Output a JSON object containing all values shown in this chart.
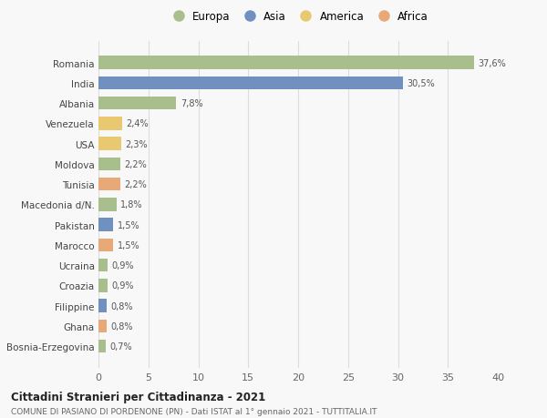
{
  "countries": [
    "Romania",
    "India",
    "Albania",
    "Venezuela",
    "USA",
    "Moldova",
    "Tunisia",
    "Macedonia d/N.",
    "Pakistan",
    "Marocco",
    "Ucraina",
    "Croazia",
    "Filippine",
    "Ghana",
    "Bosnia-Erzegovina"
  ],
  "values": [
    37.6,
    30.5,
    7.8,
    2.4,
    2.3,
    2.2,
    2.2,
    1.8,
    1.5,
    1.5,
    0.9,
    0.9,
    0.8,
    0.8,
    0.7
  ],
  "labels": [
    "37,6%",
    "30,5%",
    "7,8%",
    "2,4%",
    "2,3%",
    "2,2%",
    "2,2%",
    "1,8%",
    "1,5%",
    "1,5%",
    "0,9%",
    "0,9%",
    "0,8%",
    "0,8%",
    "0,7%"
  ],
  "colors": [
    "#a8be8c",
    "#7090c0",
    "#a8be8c",
    "#e8c870",
    "#e8c870",
    "#a8be8c",
    "#e8a878",
    "#a8be8c",
    "#7090c0",
    "#e8a878",
    "#a8be8c",
    "#a8be8c",
    "#7090c0",
    "#e8a878",
    "#a8be8c"
  ],
  "legend_labels": [
    "Europa",
    "Asia",
    "America",
    "Africa"
  ],
  "legend_colors": [
    "#a8be8c",
    "#7090c0",
    "#e8c870",
    "#e8a878"
  ],
  "title": "Cittadini Stranieri per Cittadinanza - 2021",
  "subtitle": "COMUNE DI PASIANO DI PORDENONE (PN) - Dati ISTAT al 1° gennaio 2021 - TUTTITALIA.IT",
  "xlim": [
    0,
    40
  ],
  "xticks": [
    0,
    5,
    10,
    15,
    20,
    25,
    30,
    35,
    40
  ],
  "background_color": "#f8f8f8",
  "grid_color": "#dddddd",
  "bar_height": 0.65
}
